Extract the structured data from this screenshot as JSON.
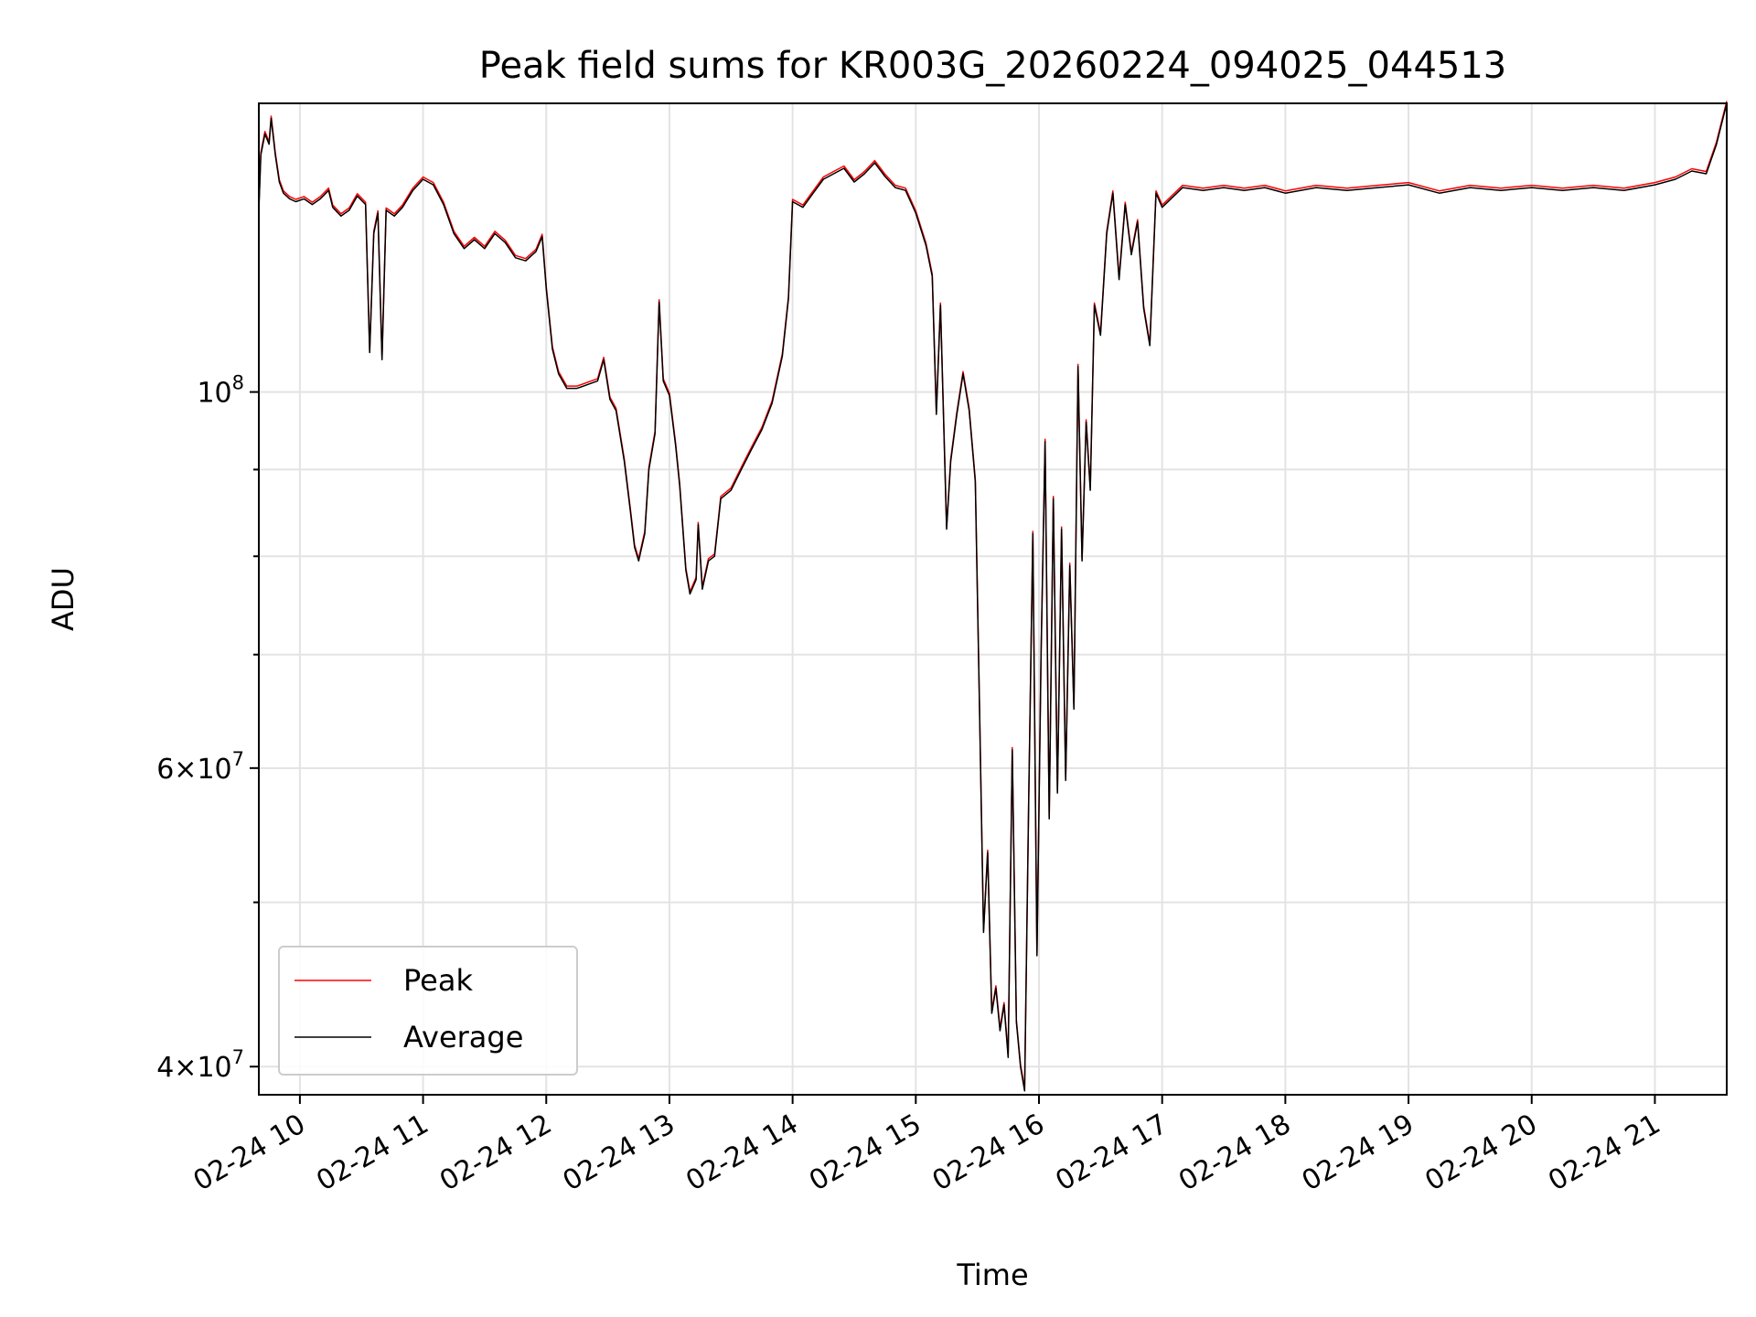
{
  "chart_data": {
    "type": "line",
    "title": "Peak field sums for KR003G_20260224_094025_044513",
    "xlabel": "Time",
    "ylabel": "ADU",
    "yscale": "log",
    "xlim": [
      "02-24 09:40",
      "02-24 21:35"
    ],
    "ylim": [
      38500000,
      148000000
    ],
    "x_ticks": [
      "02-24 10",
      "02-24 11",
      "02-24 12",
      "02-24 13",
      "02-24 14",
      "02-24 15",
      "02-24 16",
      "02-24 17",
      "02-24 18",
      "02-24 19",
      "02-24 20",
      "02-24 21"
    ],
    "y_ticks": [
      {
        "value": 40000000,
        "mant": "4",
        "exp": "7"
      },
      {
        "value": 60000000,
        "mant": "6",
        "exp": "7"
      },
      {
        "value": 100000000,
        "mant": "",
        "exp": "8"
      }
    ],
    "y_minor_ticks": [
      50000000,
      70000000,
      80000000,
      90000000
    ],
    "grid": true,
    "legend_position": "lower-left",
    "series": [
      {
        "name": "Peak",
        "color": "#ff0000"
      },
      {
        "name": "Average",
        "color": "#000000"
      }
    ],
    "points": [
      [
        "02-24 09:40",
        128000000
      ],
      [
        "02-24 09:41",
        138000000
      ],
      [
        "02-24 09:43",
        142000000
      ],
      [
        "02-24 09:45",
        140000000
      ],
      [
        "02-24 09:46",
        145000000
      ],
      [
        "02-24 09:48",
        138000000
      ],
      [
        "02-24 09:50",
        133000000
      ],
      [
        "02-24 09:52",
        131000000
      ],
      [
        "02-24 09:55",
        130000000
      ],
      [
        "02-24 09:58",
        129500000
      ],
      [
        "02-24 10:02",
        130000000
      ],
      [
        "02-24 10:06",
        129000000
      ],
      [
        "02-24 10:10",
        130000000
      ],
      [
        "02-24 10:14",
        131500000
      ],
      [
        "02-24 10:16",
        128500000
      ],
      [
        "02-24 10:20",
        127000000
      ],
      [
        "02-24 10:24",
        128000000
      ],
      [
        "02-24 10:28",
        130500000
      ],
      [
        "02-24 10:32",
        129000000
      ],
      [
        "02-24 10:34",
        105500000
      ],
      [
        "02-24 10:36",
        124000000
      ],
      [
        "02-24 10:38",
        127500000
      ],
      [
        "02-24 10:40",
        104500000
      ],
      [
        "02-24 10:42",
        128000000
      ],
      [
        "02-24 10:46",
        127000000
      ],
      [
        "02-24 10:50",
        128500000
      ],
      [
        "02-24 10:55",
        131500000
      ],
      [
        "02-24 11:00",
        133500000
      ],
      [
        "02-24 11:05",
        132500000
      ],
      [
        "02-24 11:10",
        129000000
      ],
      [
        "02-24 11:15",
        124000000
      ],
      [
        "02-24 11:20",
        121500000
      ],
      [
        "02-24 11:25",
        123000000
      ],
      [
        "02-24 11:30",
        121500000
      ],
      [
        "02-24 11:35",
        124000000
      ],
      [
        "02-24 11:40",
        122500000
      ],
      [
        "02-24 11:45",
        120000000
      ],
      [
        "02-24 11:50",
        119500000
      ],
      [
        "02-24 11:55",
        121000000
      ],
      [
        "02-24 11:58",
        123500000
      ],
      [
        "02-24 12:00",
        115000000
      ],
      [
        "02-24 12:03",
        106000000
      ],
      [
        "02-24 12:06",
        102500000
      ],
      [
        "02-24 12:10",
        100500000
      ],
      [
        "02-24 12:15",
        100500000
      ],
      [
        "02-24 12:20",
        101000000
      ],
      [
        "02-24 12:25",
        101500000
      ],
      [
        "02-24 12:28",
        104500000
      ],
      [
        "02-24 12:31",
        99000000
      ],
      [
        "02-24 12:34",
        97500000
      ],
      [
        "02-24 12:38",
        91000000
      ],
      [
        "02-24 12:41",
        85000000
      ],
      [
        "02-24 12:43",
        81000000
      ],
      [
        "02-24 12:45",
        79500000
      ],
      [
        "02-24 12:48",
        82500000
      ],
      [
        "02-24 12:50",
        90000000
      ],
      [
        "02-24 12:53",
        94500000
      ],
      [
        "02-24 12:55",
        113000000
      ],
      [
        "02-24 12:57",
        101500000
      ],
      [
        "02-24 13:00",
        99500000
      ],
      [
        "02-24 13:03",
        93000000
      ],
      [
        "02-24 13:05",
        88000000
      ],
      [
        "02-24 13:08",
        78500000
      ],
      [
        "02-24 13:10",
        76000000
      ],
      [
        "02-24 13:13",
        77500000
      ],
      [
        "02-24 13:14",
        83500000
      ],
      [
        "02-24 13:16",
        76500000
      ],
      [
        "02-24 13:19",
        79500000
      ],
      [
        "02-24 13:22",
        80000000
      ],
      [
        "02-24 13:25",
        86500000
      ],
      [
        "02-24 13:30",
        87500000
      ],
      [
        "02-24 13:35",
        90000000
      ],
      [
        "02-24 13:40",
        92500000
      ],
      [
        "02-24 13:45",
        95000000
      ],
      [
        "02-24 13:50",
        98500000
      ],
      [
        "02-24 13:55",
        105000000
      ],
      [
        "02-24 13:58",
        113500000
      ],
      [
        "02-24 14:00",
        129500000
      ],
      [
        "02-24 14:05",
        128500000
      ],
      [
        "02-24 14:10",
        131000000
      ],
      [
        "02-24 14:15",
        133500000
      ],
      [
        "02-24 14:20",
        134500000
      ],
      [
        "02-24 14:25",
        135500000
      ],
      [
        "02-24 14:30",
        133000000
      ],
      [
        "02-24 14:35",
        134500000
      ],
      [
        "02-24 14:40",
        136500000
      ],
      [
        "02-24 14:45",
        134000000
      ],
      [
        "02-24 14:50",
        132000000
      ],
      [
        "02-24 14:55",
        131500000
      ],
      [
        "02-24 15:00",
        127500000
      ],
      [
        "02-24 15:05",
        122000000
      ],
      [
        "02-24 15:08",
        117000000
      ],
      [
        "02-24 15:10",
        97000000
      ],
      [
        "02-24 15:12",
        112500000
      ],
      [
        "02-24 15:15",
        83000000
      ],
      [
        "02-24 15:17",
        91000000
      ],
      [
        "02-24 15:20",
        97000000
      ],
      [
        "02-24 15:23",
        102500000
      ],
      [
        "02-24 15:26",
        97500000
      ],
      [
        "02-24 15:29",
        88500000
      ],
      [
        "02-24 15:31",
        65500000
      ],
      [
        "02-24 15:33",
        48000000
      ],
      [
        "02-24 15:35",
        53500000
      ],
      [
        "02-24 15:37",
        43000000
      ],
      [
        "02-24 15:39",
        44500000
      ],
      [
        "02-24 15:41",
        42000000
      ],
      [
        "02-24 15:43",
        43500000
      ],
      [
        "02-24 15:45",
        40500000
      ],
      [
        "02-24 15:47",
        61500000
      ],
      [
        "02-24 15:49",
        42500000
      ],
      [
        "02-24 15:51",
        40000000
      ],
      [
        "02-24 15:53",
        38700000
      ],
      [
        "02-24 15:55",
        57500000
      ],
      [
        "02-24 15:57",
        82500000
      ],
      [
        "02-24 15:59",
        46500000
      ],
      [
        "02-24 16:01",
        70000000
      ],
      [
        "02-24 16:03",
        93500000
      ],
      [
        "02-24 16:05",
        56000000
      ],
      [
        "02-24 16:07",
        86500000
      ],
      [
        "02-24 16:09",
        58000000
      ],
      [
        "02-24 16:11",
        83000000
      ],
      [
        "02-24 16:13",
        59000000
      ],
      [
        "02-24 16:15",
        79000000
      ],
      [
        "02-24 16:17",
        65000000
      ],
      [
        "02-24 16:19",
        103500000
      ],
      [
        "02-24 16:21",
        79500000
      ],
      [
        "02-24 16:23",
        96000000
      ],
      [
        "02-24 16:25",
        87500000
      ],
      [
        "02-24 16:27",
        112500000
      ],
      [
        "02-24 16:30",
        108000000
      ],
      [
        "02-24 16:33",
        124000000
      ],
      [
        "02-24 16:36",
        131000000
      ],
      [
        "02-24 16:39",
        116500000
      ],
      [
        "02-24 16:42",
        129000000
      ],
      [
        "02-24 16:45",
        120500000
      ],
      [
        "02-24 16:48",
        126000000
      ],
      [
        "02-24 16:51",
        112000000
      ],
      [
        "02-24 16:54",
        106500000
      ],
      [
        "02-24 16:57",
        131000000
      ],
      [
        "02-24 17:00",
        128500000
      ],
      [
        "02-24 17:10",
        132000000
      ],
      [
        "02-24 17:20",
        131500000
      ],
      [
        "02-24 17:30",
        132000000
      ],
      [
        "02-24 17:40",
        131500000
      ],
      [
        "02-24 17:50",
        132000000
      ],
      [
        "02-24 18:00",
        131000000
      ],
      [
        "02-24 18:15",
        132000000
      ],
      [
        "02-24 18:30",
        131500000
      ],
      [
        "02-24 18:45",
        132000000
      ],
      [
        "02-24 19:00",
        132500000
      ],
      [
        "02-24 19:15",
        131000000
      ],
      [
        "02-24 19:30",
        132000000
      ],
      [
        "02-24 19:45",
        131500000
      ],
      [
        "02-24 20:00",
        132000000
      ],
      [
        "02-24 20:15",
        131500000
      ],
      [
        "02-24 20:30",
        132000000
      ],
      [
        "02-24 20:45",
        131500000
      ],
      [
        "02-24 21:00",
        132500000
      ],
      [
        "02-24 21:10",
        133500000
      ],
      [
        "02-24 21:18",
        135000000
      ],
      [
        "02-24 21:25",
        134500000
      ],
      [
        "02-24 21:30",
        140000000
      ],
      [
        "02-24 21:35",
        148000000
      ]
    ]
  }
}
